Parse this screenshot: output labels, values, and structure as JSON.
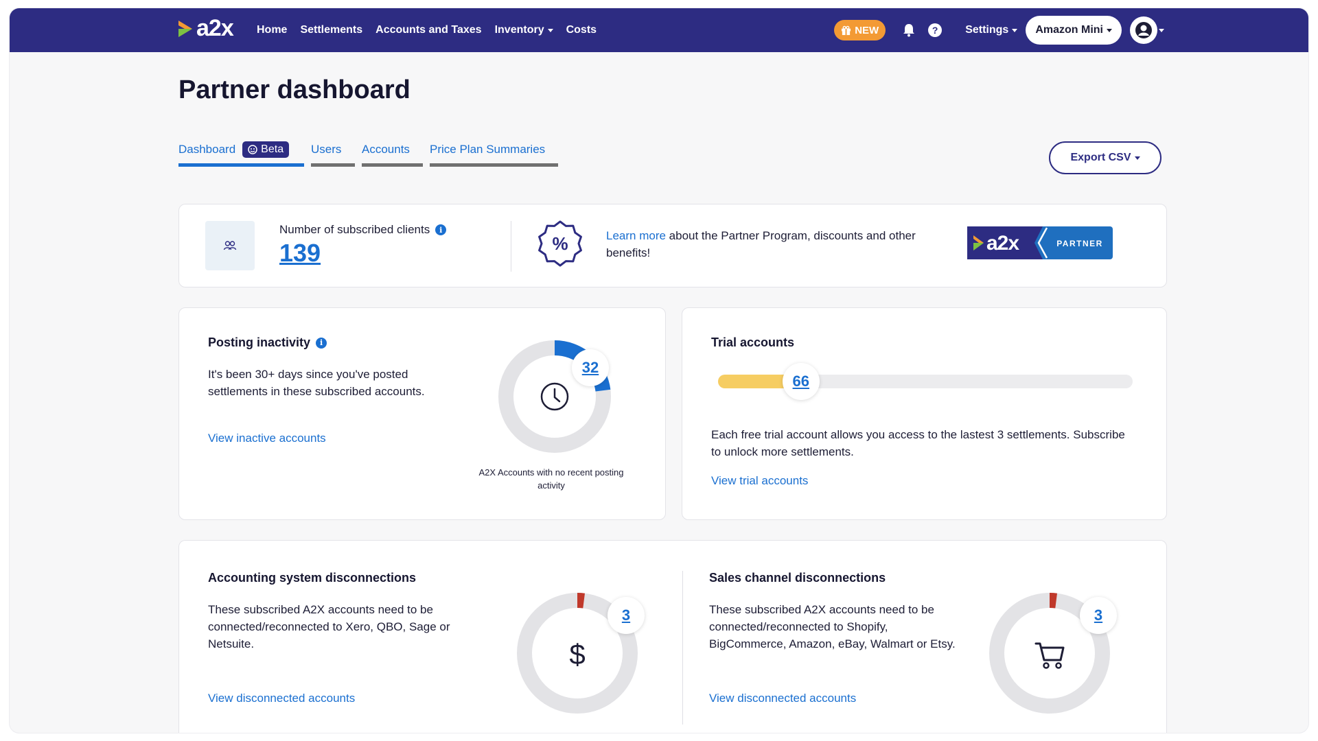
{
  "nav": {
    "logo_text": "a2x",
    "links": [
      "Home",
      "Settlements",
      "Accounts and Taxes",
      "Inventory",
      "Costs"
    ],
    "new_badge": "NEW",
    "settings_label": "Settings",
    "org_name": "Amazon Mini"
  },
  "page": {
    "title": "Partner dashboard",
    "tabs": [
      {
        "label": "Dashboard",
        "badge": "Beta"
      },
      {
        "label": "Users"
      },
      {
        "label": "Accounts"
      },
      {
        "label": "Price Plan Summaries"
      }
    ],
    "export_label": "Export CSV"
  },
  "summary": {
    "clients_label": "Number of subscribed clients",
    "clients_count": "139",
    "learn_link": "Learn more",
    "learn_text": " about the Partner Program, discounts and other benefits!",
    "partner_logo_text": "a2x",
    "partner_label": "PARTNER"
  },
  "inactivity": {
    "title": "Posting inactivity",
    "text": "It's been 30+ days since you've posted settlements in these subscribed accounts.",
    "link": "View inactive accounts",
    "count": "32",
    "fraction": 0.23,
    "caption": "A2X Accounts with no recent posting activity"
  },
  "trial": {
    "title": "Trial accounts",
    "count": "66",
    "fraction": 0.2,
    "text": "Each free trial account allows you access to the lastest 3 settlements. Subscribe to unlock more settlements.",
    "link": "View trial accounts"
  },
  "accounting_disc": {
    "title": "Accounting system disconnections",
    "text": "These subscribed A2X accounts need to be connected/reconnected to Xero, QBO, Sage or Netsuite.",
    "link": "View disconnected accounts",
    "count": "3",
    "fraction": 0.02,
    "symbol": "$"
  },
  "sales_disc": {
    "title": "Sales channel disconnections",
    "text": "These subscribed A2X accounts need to be connected/reconnected to Shopify, BigCommerce, Amazon, eBay, Walmart or Etsy.",
    "link": "View disconnected accounts",
    "count": "3",
    "fraction": 0.02
  },
  "colors": {
    "nav_bg": "#2d2c82",
    "link_blue": "#1a6fd0",
    "new_orange": "#f39a34",
    "trial_yellow": "#f6cd62",
    "alert_red": "#c0392b",
    "donut_gray": "#e3e3e6"
  }
}
